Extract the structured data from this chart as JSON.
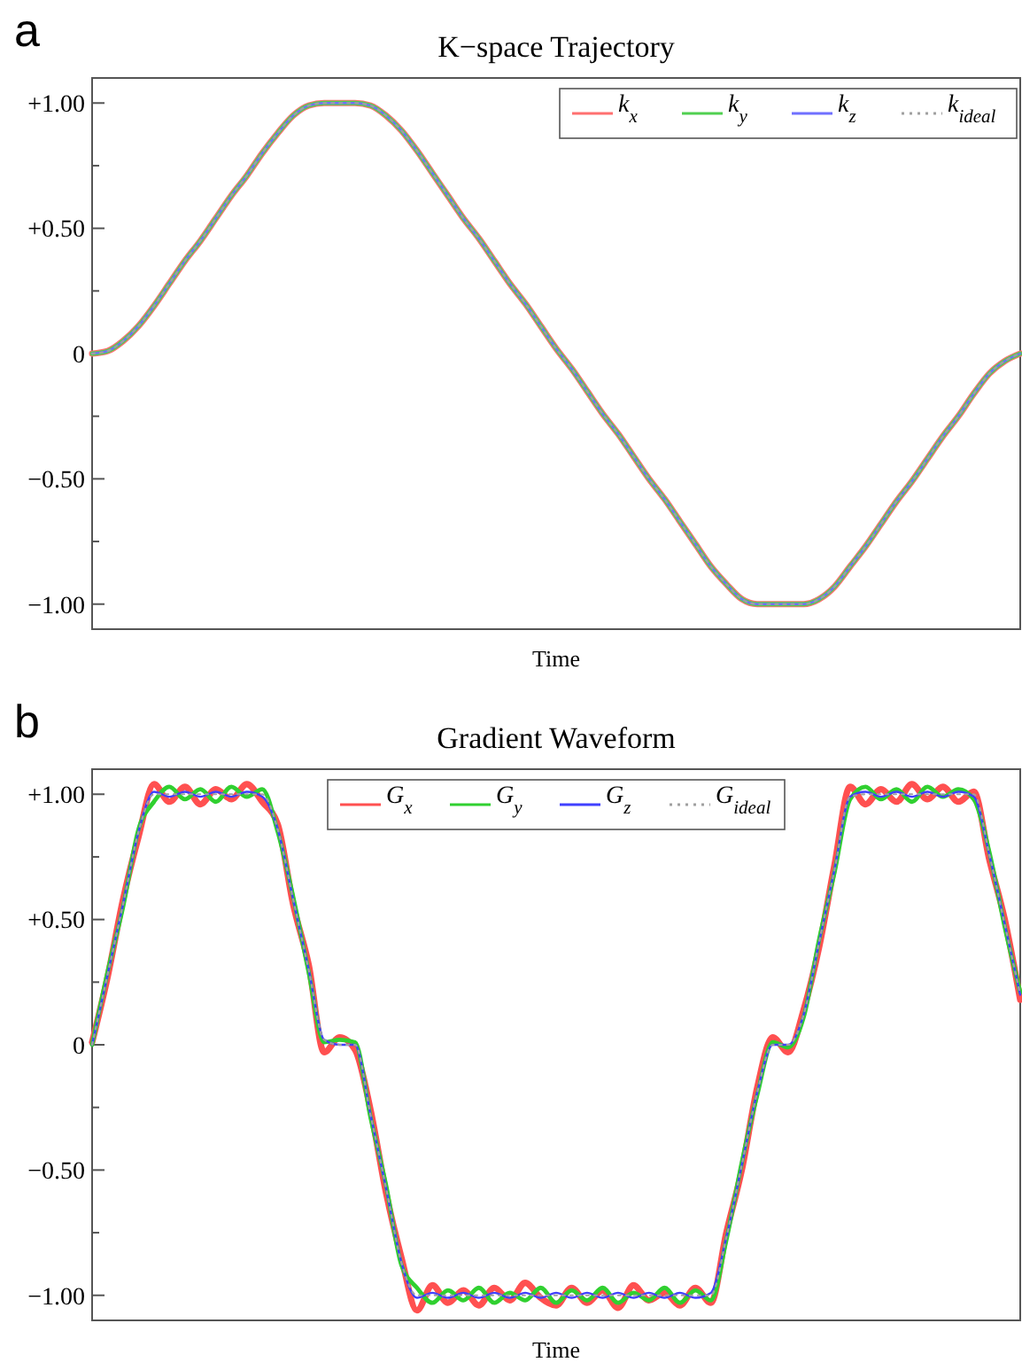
{
  "chart_data": [
    {
      "type": "line",
      "title": "K−space Trajectory",
      "xlabel": "Time",
      "annotations": [
        "a"
      ],
      "legend": "top right",
      "tick_labels": "y",
      "categories": [
        null,
        null,
        null,
        null,
        null,
        null,
        null,
        null,
        null,
        null,
        null,
        null,
        null,
        null,
        null,
        null,
        null,
        null,
        null,
        null,
        null,
        null,
        null,
        null,
        null,
        null,
        null,
        null,
        null,
        null,
        null,
        null,
        null,
        null,
        null,
        null,
        null,
        null,
        null,
        null,
        null,
        null,
        null,
        null,
        null,
        null,
        null,
        null,
        null,
        null,
        null,
        null,
        null,
        null,
        null,
        null,
        null,
        null,
        null,
        null,
        null
      ],
      "ylim": [
        -1.1,
        1.1
      ],
      "yticks": [
        {
          "value": -1,
          "label": "−1.00"
        },
        {
          "value": -0.75,
          "label": null
        },
        {
          "value": -0.5,
          "label": "−0.50"
        },
        {
          "value": -0.25,
          "label": null
        },
        0,
        {
          "value": 0.25,
          "label": null
        },
        {
          "value": 0.5,
          "label": "+0.50"
        },
        {
          "value": 0.75,
          "label": null
        },
        {
          "value": 1,
          "label": "+1.00"
        }
      ],
      "series": [
        {
          "name": "k$_{x}$",
          "color": "#ff7070",
          "values": [
            0,
            0.01,
            0.05,
            0.11,
            0.19,
            0.28,
            0.37,
            0.45,
            0.54,
            0.63,
            0.71,
            0.8,
            0.88,
            0.95,
            0.99,
            1,
            1,
            1,
            0.99,
            0.95,
            0.89,
            0.81,
            0.72,
            0.63,
            0.54,
            0.46,
            0.37,
            0.28,
            0.2,
            0.11,
            0.02,
            -0.06,
            -0.15,
            -0.24,
            -0.32,
            -0.41,
            -0.5,
            -0.58,
            -0.67,
            -0.76,
            -0.85,
            -0.92,
            -0.98,
            -1,
            -1,
            -1,
            -1,
            -0.98,
            -0.93,
            -0.85,
            -0.77,
            -0.68,
            -0.59,
            -0.51,
            -0.42,
            -0.33,
            -0.25,
            -0.16,
            -0.08,
            -0.03,
            0
          ]
        },
        {
          "name": "k$_{y}$",
          "color": "#50d050",
          "values": [
            0,
            0.01,
            0.05,
            0.11,
            0.19,
            0.28,
            0.37,
            0.45,
            0.54,
            0.63,
            0.71,
            0.8,
            0.88,
            0.95,
            0.99,
            1,
            1,
            1,
            0.99,
            0.95,
            0.89,
            0.81,
            0.72,
            0.63,
            0.54,
            0.46,
            0.37,
            0.28,
            0.2,
            0.11,
            0.02,
            -0.06,
            -0.15,
            -0.24,
            -0.32,
            -0.41,
            -0.5,
            -0.58,
            -0.67,
            -0.76,
            -0.85,
            -0.92,
            -0.98,
            -1,
            -1,
            -1,
            -1,
            -0.98,
            -0.93,
            -0.85,
            -0.77,
            -0.68,
            -0.59,
            -0.51,
            -0.42,
            -0.33,
            -0.25,
            -0.16,
            -0.08,
            -0.03,
            0
          ]
        },
        {
          "name": "k$_{z}$",
          "color": "#7070ff",
          "values": [
            0,
            0.01,
            0.05,
            0.11,
            0.19,
            0.28,
            0.37,
            0.45,
            0.54,
            0.63,
            0.71,
            0.8,
            0.88,
            0.95,
            0.99,
            1,
            1,
            1,
            0.99,
            0.95,
            0.89,
            0.81,
            0.72,
            0.63,
            0.54,
            0.46,
            0.37,
            0.28,
            0.2,
            0.11,
            0.02,
            -0.06,
            -0.15,
            -0.24,
            -0.32,
            -0.41,
            -0.5,
            -0.58,
            -0.67,
            -0.76,
            -0.85,
            -0.92,
            -0.98,
            -1,
            -1,
            -1,
            -1,
            -0.98,
            -0.93,
            -0.85,
            -0.77,
            -0.68,
            -0.59,
            -0.51,
            -0.42,
            -0.33,
            -0.25,
            -0.16,
            -0.08,
            -0.03,
            0
          ]
        },
        {
          "name": "k$_{ideal}$",
          "color": "#a0a0a0",
          "line_style": "dotted",
          "values": [
            0,
            0.01,
            0.05,
            0.11,
            0.19,
            0.28,
            0.37,
            0.45,
            0.54,
            0.63,
            0.71,
            0.8,
            0.88,
            0.95,
            0.99,
            1,
            1,
            1,
            0.99,
            0.95,
            0.89,
            0.81,
            0.72,
            0.63,
            0.54,
            0.46,
            0.37,
            0.28,
            0.2,
            0.11,
            0.02,
            -0.06,
            -0.15,
            -0.24,
            -0.32,
            -0.41,
            -0.5,
            -0.58,
            -0.67,
            -0.76,
            -0.85,
            -0.92,
            -0.98,
            -1,
            -1,
            -1,
            -1,
            -0.98,
            -0.93,
            -0.85,
            -0.77,
            -0.68,
            -0.59,
            -0.51,
            -0.42,
            -0.33,
            -0.25,
            -0.16,
            -0.08,
            -0.03,
            0
          ]
        }
      ]
    },
    {
      "type": "line",
      "title": "Gradient Waveform",
      "xlabel": "Time",
      "annotations": [
        "b"
      ],
      "legend": "top",
      "tick_labels": "y",
      "categories": [
        null,
        null,
        null,
        null,
        null,
        null,
        null,
        null,
        null,
        null,
        null,
        null,
        null,
        null,
        null,
        null,
        null,
        null,
        null,
        null,
        null,
        null,
        null,
        null,
        null,
        null,
        null,
        null,
        null,
        null,
        null,
        null,
        null,
        null,
        null,
        null,
        null,
        null,
        null,
        null,
        null,
        null,
        null,
        null,
        null,
        null,
        null,
        null,
        null,
        null,
        null,
        null,
        null,
        null,
        null,
        null,
        null,
        null,
        null,
        null,
        null
      ],
      "ylim": [
        -1.1,
        1.1
      ],
      "yticks": [
        {
          "value": -1,
          "label": "−1.00"
        },
        {
          "value": -0.75,
          "label": null
        },
        {
          "value": -0.5,
          "label": "−0.50"
        },
        {
          "value": -0.25,
          "label": null
        },
        0,
        {
          "value": 0.25,
          "label": null
        },
        {
          "value": 0.5,
          "label": "+0.50"
        },
        {
          "value": 0.75,
          "label": null
        },
        {
          "value": 1,
          "label": "+1.00"
        }
      ],
      "series": [
        {
          "name": "G$_{x}$",
          "color": "#ff5050",
          "values": [
            0.01,
            0.27,
            0.58,
            0.83,
            1.04,
            0.97,
            1.03,
            0.96,
            1.02,
            0.98,
            1.04,
            0.97,
            0.88,
            0.56,
            0.32,
            -0.03,
            0.03,
            -0.02,
            -0.26,
            -0.59,
            -0.85,
            -1.06,
            -0.96,
            -1.03,
            -0.98,
            -1.04,
            -0.97,
            -1.02,
            -0.95,
            -1.01,
            -1.04,
            -0.97,
            -1.03,
            -0.98,
            -1.05,
            -0.96,
            -1.02,
            -0.99,
            -1.04,
            -0.97,
            -1.03,
            -0.75,
            -0.5,
            -0.17,
            0.03,
            -0.03,
            0.14,
            0.39,
            0.72,
            1.03,
            0.96,
            1.02,
            0.97,
            1.04,
            0.98,
            1.03,
            0.97,
            1.01,
            0.74,
            0.5,
            0.18
          ]
        },
        {
          "name": "G$_{y}$",
          "color": "#30d030",
          "values": [
            0,
            0.29,
            0.55,
            0.86,
            0.97,
            1.03,
            0.98,
            1.02,
            0.97,
            1.03,
            0.99,
            1.02,
            0.85,
            0.59,
            0.29,
            0.01,
            0.02,
            0.01,
            -0.29,
            -0.56,
            -0.88,
            -0.97,
            -1.03,
            -0.98,
            -1.02,
            -0.97,
            -1.03,
            -0.99,
            -1.02,
            -0.97,
            -1.03,
            -0.98,
            -1.02,
            -0.97,
            -1.03,
            -0.99,
            -1.02,
            -0.97,
            -1.03,
            -0.98,
            -1.02,
            -0.78,
            -0.47,
            -0.2,
            0.01,
            -0.01,
            0.11,
            0.42,
            0.69,
            0.98,
            1.03,
            0.98,
            1.02,
            0.97,
            1.03,
            0.99,
            1.02,
            0.98,
            0.77,
            0.47,
            0.21
          ]
        },
        {
          "name": "G$_{z}$",
          "color": "#4040ff",
          "values": [
            0,
            0.28,
            0.56,
            0.85,
            1.01,
            0.99,
            1.01,
            0.99,
            1.01,
            0.99,
            1.01,
            0.99,
            0.86,
            0.58,
            0.3,
            0.02,
            0,
            0,
            -0.28,
            -0.57,
            -0.87,
            -1.01,
            -0.99,
            -1.01,
            -0.99,
            -1.01,
            -0.99,
            -1.01,
            -0.99,
            -1.01,
            -0.99,
            -1.01,
            -0.99,
            -1.01,
            -0.99,
            -1.01,
            -0.99,
            -1.01,
            -0.99,
            -1.01,
            -0.99,
            -0.77,
            -0.48,
            -0.19,
            0,
            0,
            0.12,
            0.41,
            0.7,
            0.99,
            1.01,
            0.99,
            1.01,
            0.99,
            1.01,
            0.99,
            1.01,
            0.99,
            0.76,
            0.48,
            0.2
          ]
        },
        {
          "name": "G$_{ideal}$",
          "color": "#a0a0a0",
          "line_style": "dotted",
          "values": [
            0,
            0.28,
            0.56,
            0.85,
            1,
            1,
            1,
            1,
            1,
            1,
            1,
            1,
            0.86,
            0.58,
            0.3,
            0.02,
            0,
            0,
            -0.28,
            -0.57,
            -0.87,
            -1,
            -1,
            -1,
            -1,
            -1,
            -1,
            -1,
            -1,
            -1,
            -1,
            -1,
            -1,
            -1,
            -1,
            -1,
            -1,
            -1,
            -1,
            -1,
            -1,
            -0.77,
            -0.48,
            -0.19,
            0,
            0,
            0.12,
            0.41,
            0.7,
            0.99,
            1,
            1,
            1,
            1,
            1,
            1,
            1,
            1,
            0.76,
            0.48,
            0.2
          ]
        }
      ]
    }
  ]
}
